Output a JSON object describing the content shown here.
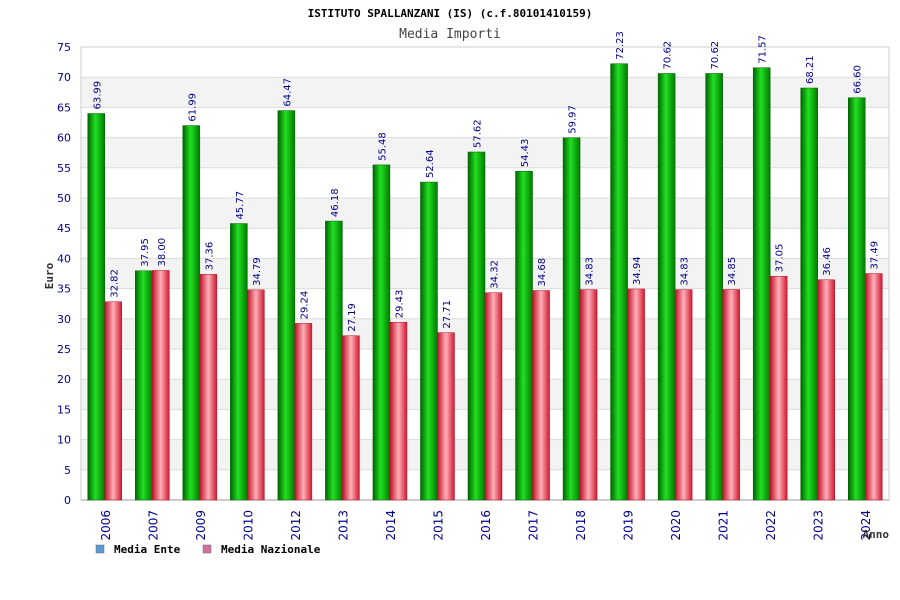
{
  "chart_data": {
    "type": "bar",
    "title": "ISTITUTO SPALLANZANI (IS) (c.f.80101410159)",
    "subtitle": "Media Importi",
    "ylabel": "Euro",
    "xlabel": "Anno",
    "ylim": [
      0,
      75
    ],
    "yticks": [
      0,
      5,
      10,
      15,
      20,
      25,
      30,
      35,
      40,
      45,
      50,
      55,
      60,
      65,
      70,
      75
    ],
    "grid": true,
    "legend_position": "bottom-left",
    "categories": [
      "2006",
      "2007",
      "2009",
      "2010",
      "2012",
      "2013",
      "2014",
      "2015",
      "2016",
      "2017",
      "2018",
      "2019",
      "2020",
      "2021",
      "2022",
      "2023",
      "2024"
    ],
    "series": [
      {
        "name": "Media Ente",
        "color": "#00a000",
        "legend_color": "#5b9bd5",
        "values": [
          63.99,
          37.95,
          61.99,
          45.77,
          64.47,
          46.18,
          55.48,
          52.64,
          57.62,
          54.43,
          59.97,
          72.23,
          70.62,
          70.62,
          71.57,
          68.21,
          66.6
        ],
        "labels": [
          "63.99",
          "37.95",
          "61.99",
          "45.77",
          "64.47",
          "46.18",
          "55.48",
          "52.64",
          "57.62",
          "54.43",
          "59.97",
          "72.23",
          "70.62",
          "70.62",
          "71.57",
          "68.21",
          "66.60"
        ]
      },
      {
        "name": "Media Nazionale",
        "color": "#e8304a",
        "legend_color": "#d070a0",
        "values": [
          32.82,
          38.0,
          37.36,
          34.79,
          29.24,
          27.19,
          29.43,
          27.71,
          34.32,
          34.68,
          34.83,
          34.94,
          34.83,
          34.85,
          37.05,
          36.46,
          37.49
        ],
        "labels": [
          "32.82",
          "38.00",
          "37.36",
          "34.79",
          "29.24",
          "27.19",
          "29.43",
          "27.71",
          "34.32",
          "34.68",
          "34.83",
          "34.94",
          "34.83",
          "34.85",
          "37.05",
          "36.46",
          "37.49"
        ]
      }
    ]
  }
}
